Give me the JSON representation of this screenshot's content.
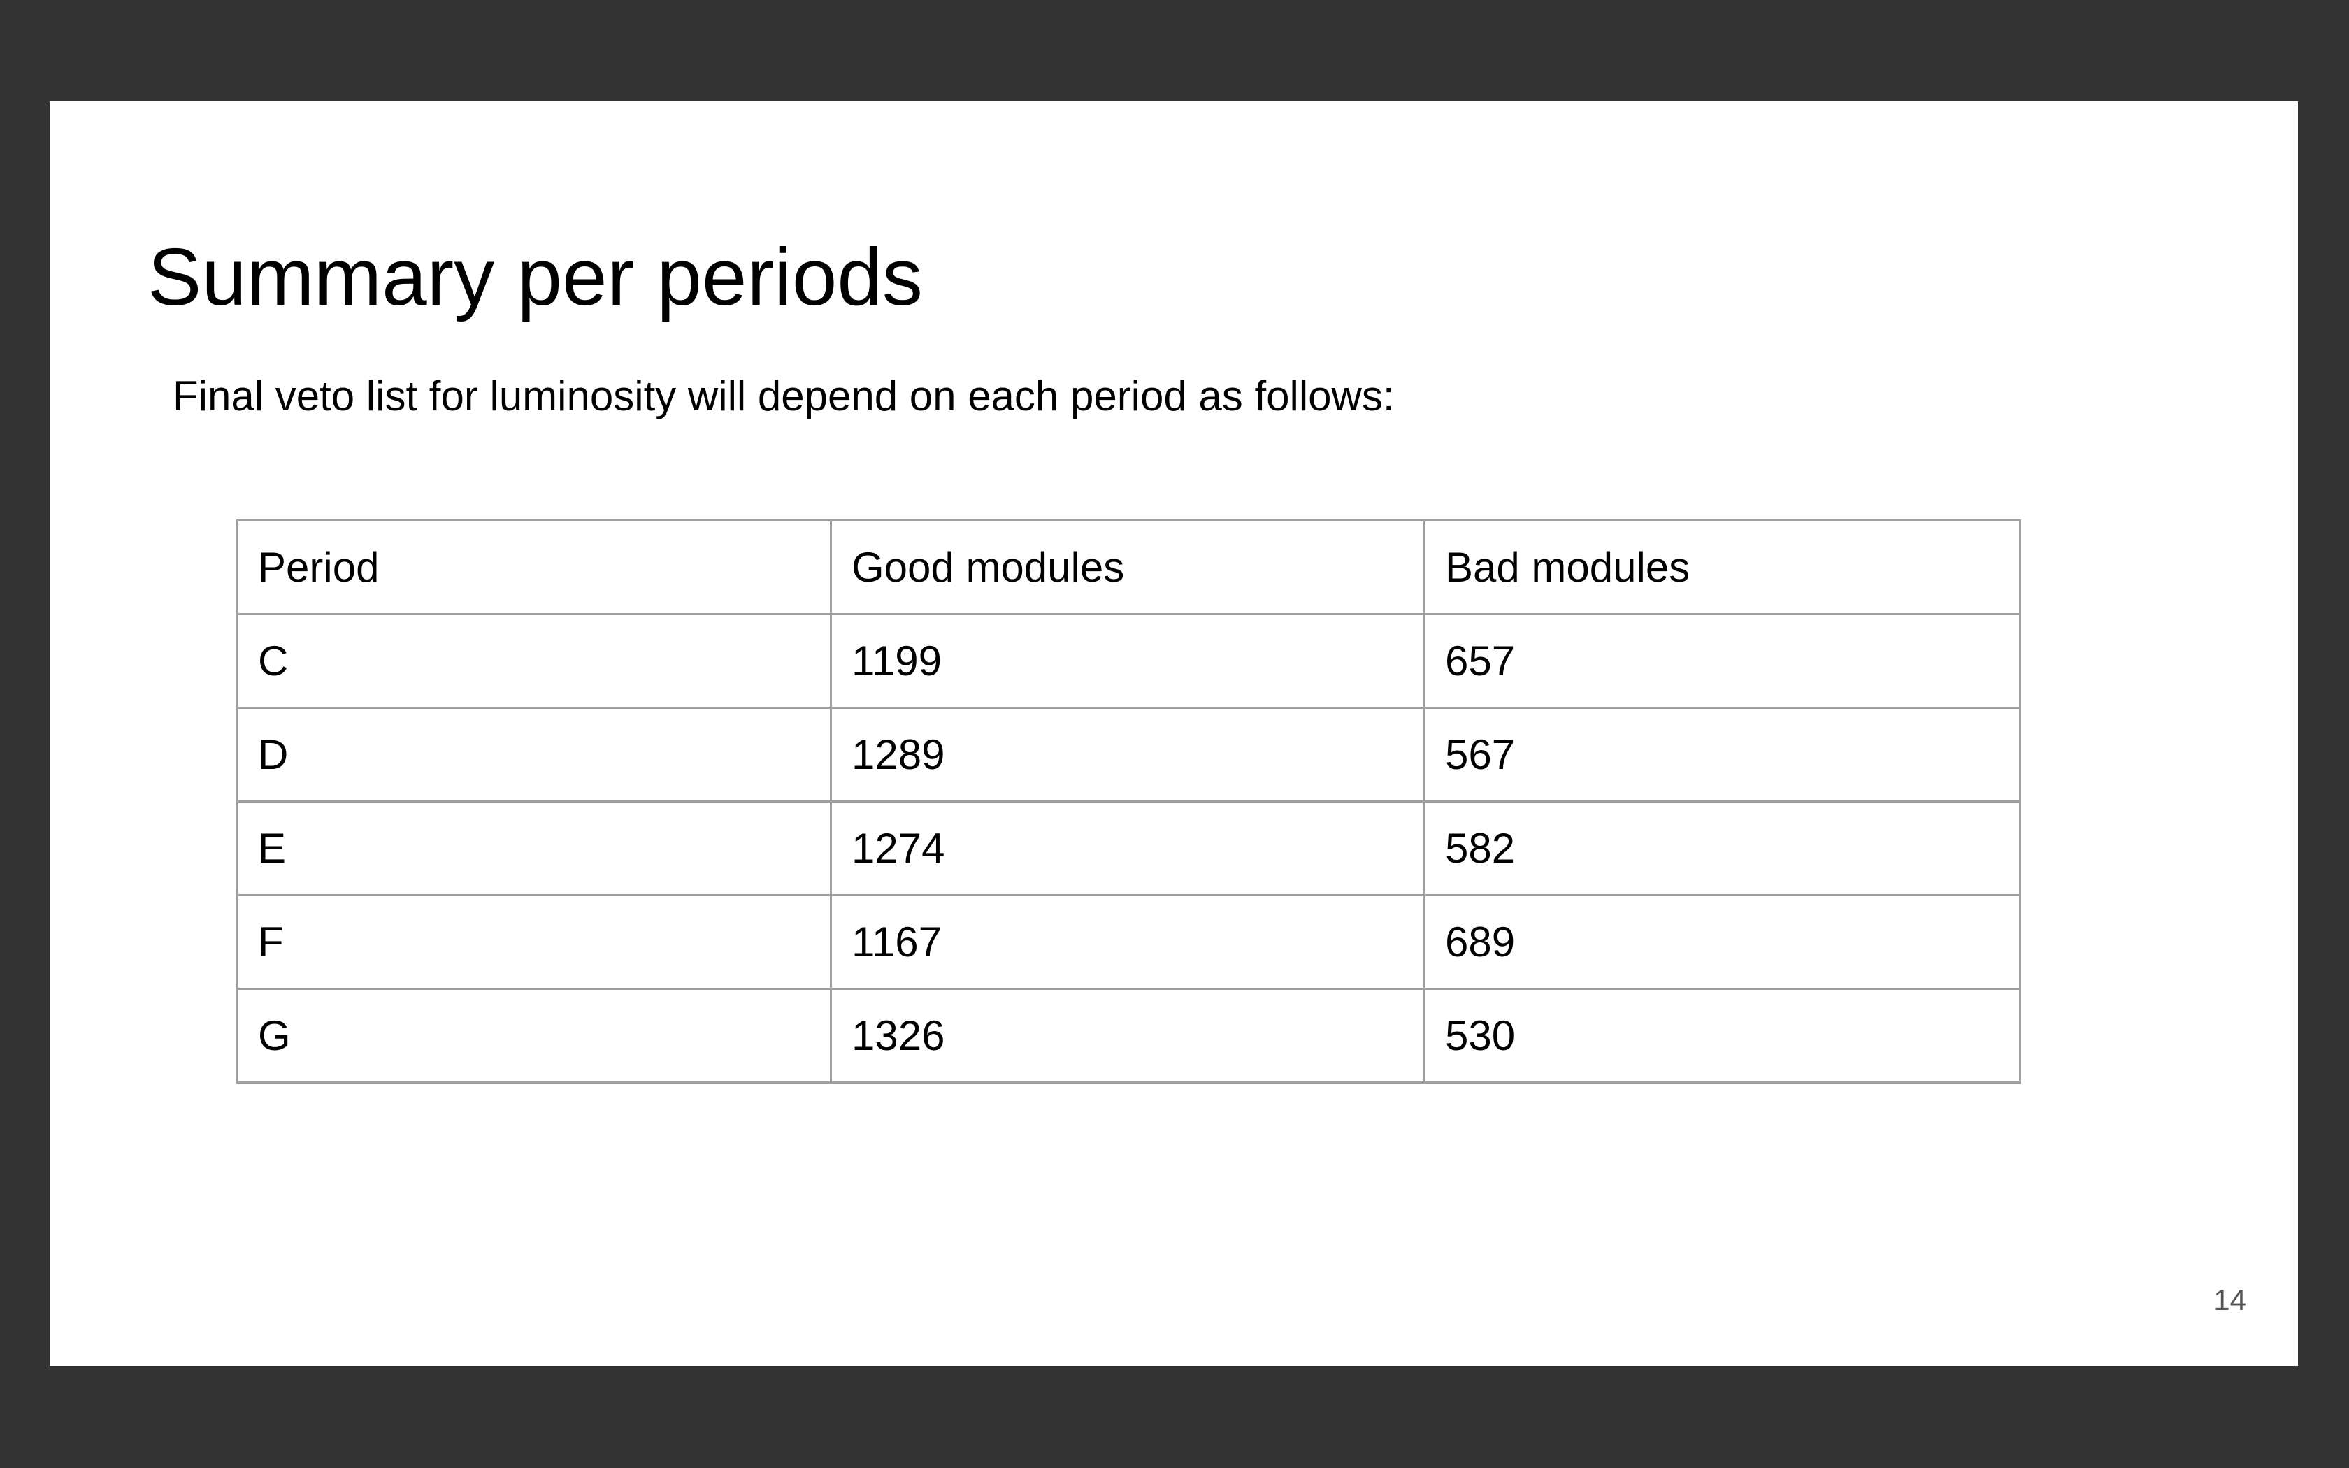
{
  "slide": {
    "title": "Summary per periods",
    "subtitle": "Final veto list for luminosity will depend on each period as follows:",
    "page_number": "14"
  },
  "table": {
    "headers": [
      "Period",
      "Good modules",
      "Bad modules"
    ],
    "rows": [
      [
        "C",
        "1199",
        "657"
      ],
      [
        "D",
        "1289",
        "567"
      ],
      [
        "E",
        "1274",
        "582"
      ],
      [
        "F",
        "1167",
        "689"
      ],
      [
        "G",
        "1326",
        "530"
      ]
    ]
  },
  "colors": {
    "background": "#333333",
    "slide": "#ffffff",
    "table_border": "#9e9e9e",
    "text": "#000000",
    "page_number": "#555555"
  }
}
